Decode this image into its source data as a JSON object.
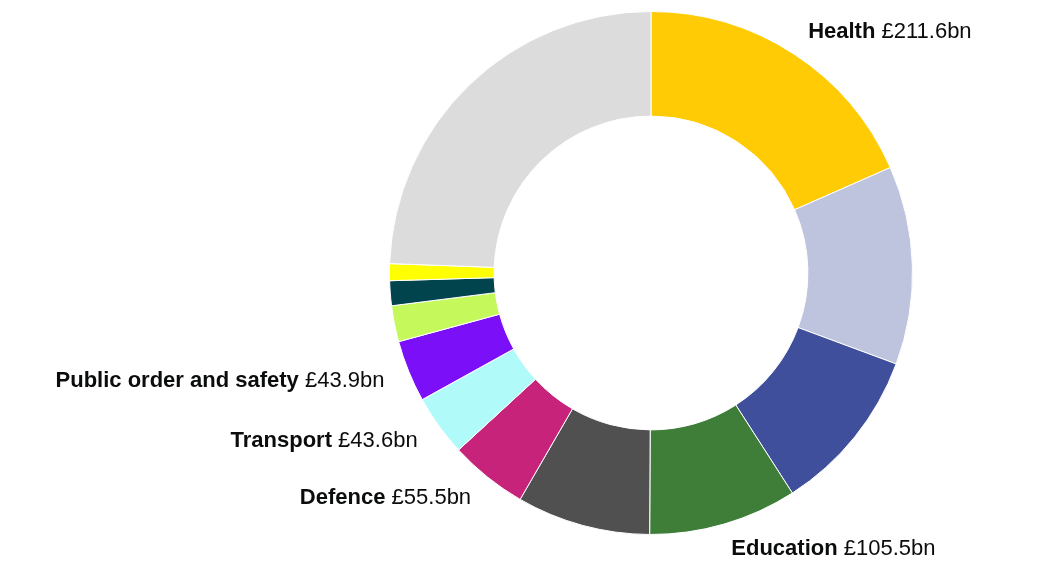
{
  "chart_data": {
    "type": "donut",
    "categories": [
      "Health",
      null,
      null,
      "Education",
      null,
      "Defence",
      "Transport",
      "Public order and safety",
      null,
      null,
      null,
      null
    ],
    "values": [
      211.6,
      141,
      118,
      105.5,
      95,
      55.5,
      43.6,
      43.9,
      25.6,
      17.6,
      12,
      281
    ],
    "value_labels": [
      "£211.6bn",
      null,
      null,
      "£105.5bn",
      null,
      "£55.5bn",
      "£43.6bn",
      "£43.9bn",
      null,
      null,
      null,
      null
    ],
    "colors": [
      "#ffcb05",
      "#bec4dd",
      "#3f4f9b",
      "#3f7e38",
      "#505050",
      "#c7237a",
      "#b0fafa",
      "#7b0ff8",
      "#c5f85a",
      "#02444e",
      "#ffff00",
      "#dcdcdc"
    ],
    "legend": false
  }
}
